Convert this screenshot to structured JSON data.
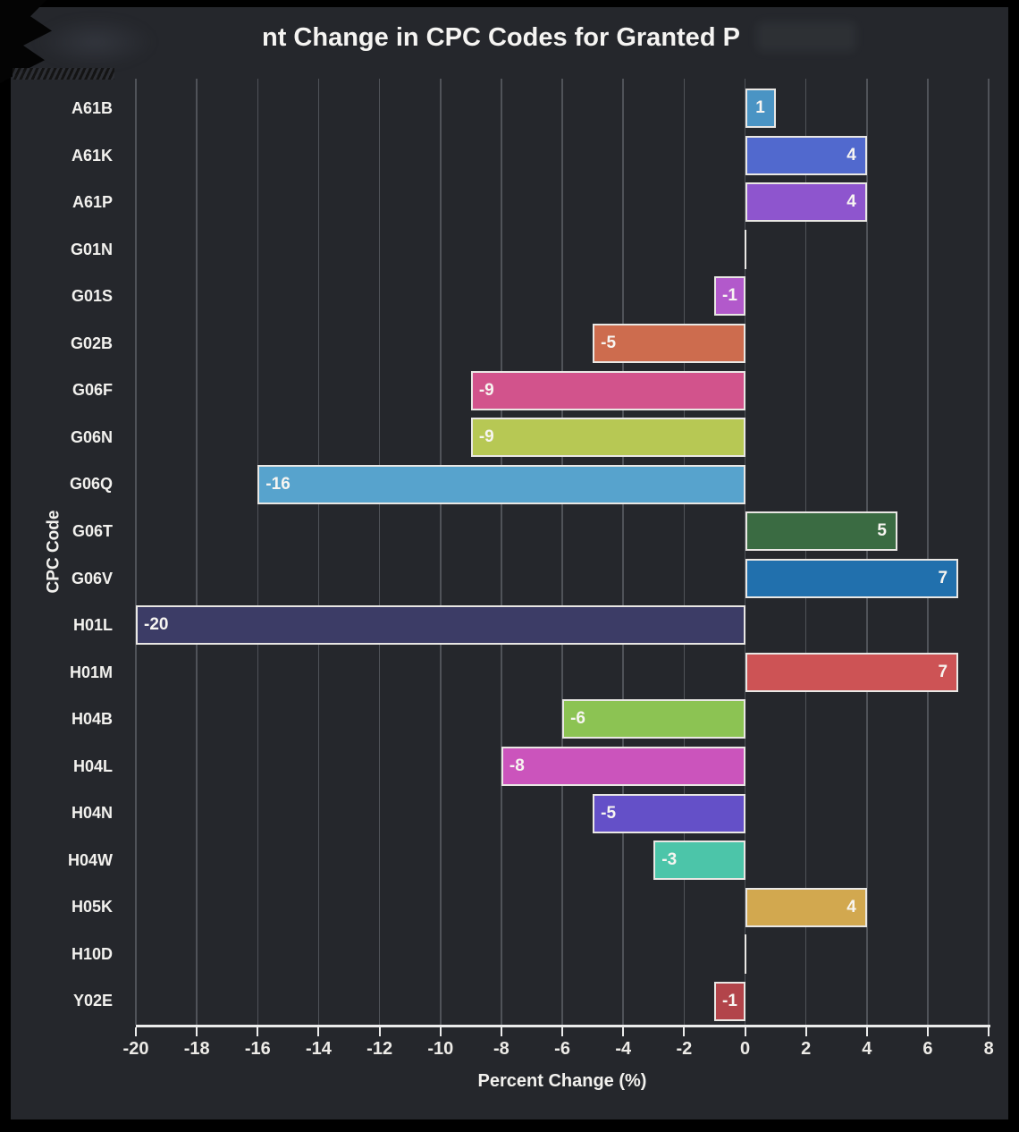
{
  "title": {
    "visible_text": "nt Change in CPC Codes for Granted P"
  },
  "axes": {
    "x_label": "Percent Change (%)",
    "y_label": "CPC Code",
    "x_ticks": [
      -20,
      -18,
      -16,
      -14,
      -12,
      -10,
      -8,
      -6,
      -4,
      -2,
      0,
      2,
      4,
      6,
      8
    ]
  },
  "chart_data": {
    "type": "bar",
    "orientation": "horizontal",
    "title": "nt Change in CPC Codes for Granted P",
    "xlabel": "Percent Change (%)",
    "ylabel": "CPC Code",
    "xlim": [
      -20,
      8.7
    ],
    "grid": true,
    "legend": "none",
    "categories": [
      "A61B",
      "A61K",
      "A61P",
      "G01N",
      "G01S",
      "G02B",
      "G06F",
      "G06N",
      "G06Q",
      "G06T",
      "G06V",
      "H01L",
      "H01M",
      "H04B",
      "H04L",
      "H04N",
      "H04W",
      "H05K",
      "H10D",
      "Y02E"
    ],
    "values": [
      1,
      4,
      4,
      0,
      -1,
      -5,
      -9,
      -9,
      -16,
      5,
      7,
      -20,
      7,
      -6,
      -8,
      -5,
      -3,
      4,
      0,
      -1
    ],
    "bar_labels": [
      "1",
      "4",
      "4",
      "",
      "-1",
      "-5",
      "-9",
      "-9",
      "-16",
      "5",
      "7",
      "-20",
      "7",
      "-6",
      "-8",
      "-5",
      "-3",
      "4",
      "",
      "-1"
    ],
    "bar_colors": [
      "#4a94c4",
      "#5169ce",
      "#8e55ce",
      "#ececec",
      "#b259cb",
      "#cd6c4e",
      "#d2538c",
      "#b7c854",
      "#57a3cd",
      "#3a6b42",
      "#2170ad",
      "#3c3c66",
      "#cd5355",
      "#8cc353",
      "#cb54bc",
      "#6450c8",
      "#4cc5a9",
      "#d2a84f",
      "#ececec",
      "#b2444a"
    ]
  },
  "colors": {
    "background": "#25272c",
    "frame": "#000000",
    "gridline": "#505359",
    "axis_line": "#ececec",
    "bar_border": "#e9e7e4",
    "text": "#f2f1ee"
  }
}
